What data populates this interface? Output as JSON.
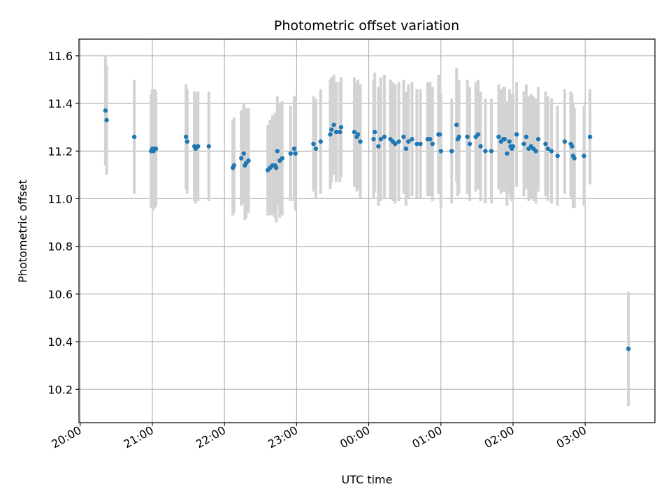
{
  "chart_data": {
    "type": "scatter",
    "title": "Photometric offset variation",
    "xlabel": "UTC time",
    "ylabel": "Photometric offset",
    "xlim": [
      "2000-01-01T19:59",
      "2000-01-02T03:58"
    ],
    "ylim": [
      10.06,
      11.67
    ],
    "x_tick_labels": [
      "20:00",
      "21:00",
      "22:00",
      "23:00",
      "00:00",
      "01:00",
      "02:00",
      "03:00"
    ],
    "x_ticks": [
      "2000-01-01T20:00",
      "2000-01-01T21:00",
      "2000-01-01T22:00",
      "2000-01-01T23:00",
      "2000-01-02T00:00",
      "2000-01-02T01:00",
      "2000-01-02T02:00",
      "2000-01-02T03:00"
    ],
    "y_ticks": [
      10.2,
      10.4,
      10.6,
      10.8,
      11.0,
      11.2,
      11.4,
      11.6
    ],
    "y_tick_labels": [
      "10.2",
      "10.4",
      "10.6",
      "10.8",
      "11.0",
      "11.2",
      "11.4",
      "11.6"
    ],
    "grid": true,
    "colors": {
      "points": "#1f77b4",
      "error_bars": "#d3d3d3",
      "grid": "#b0b0b0"
    },
    "series": [
      {
        "x": [
          "20:21",
          "20:22",
          "20:45",
          "20:59",
          "21:00",
          "21:01",
          "21:02",
          "21:03",
          "21:28",
          "21:29",
          "21:35",
          "21:36",
          "21:38",
          "21:47",
          "22:07",
          "22:08",
          "22:14",
          "22:16",
          "22:17",
          "22:18",
          "22:20",
          "22:36",
          "22:38",
          "22:40",
          "22:42",
          "22:43",
          "22:44",
          "22:46",
          "22:48",
          "22:55",
          "22:58",
          "22:59",
          "23:14",
          "23:16",
          "23:20",
          "23:28",
          "23:29",
          "23:31",
          "23:33",
          "23:36",
          "23:37",
          "23:48",
          "23:50",
          "23:51",
          "23:53",
          "00:04",
          "00:05",
          "00:08",
          "00:10",
          "00:13",
          "00:18",
          "00:20",
          "00:22",
          "00:25",
          "00:29",
          "00:31",
          "00:33",
          "00:36",
          "00:40",
          "00:43",
          "00:49",
          "00:51",
          "00:53",
          "00:58",
          "00:59",
          "01:00",
          "01:09",
          "01:13",
          "01:14",
          "01:15",
          "01:22",
          "01:24",
          "01:29",
          "01:31",
          "01:33",
          "01:37",
          "01:42",
          "01:48",
          "01:50",
          "01:52",
          "01:53",
          "01:55",
          "01:57",
          "01:58",
          "01:59",
          "02:00",
          "02:03",
          "02:09",
          "02:11",
          "02:13",
          "02:15",
          "02:17",
          "02:19",
          "02:21",
          "02:27",
          "02:29",
          "02:32",
          "02:37",
          "02:43",
          "02:48",
          "02:49",
          "02:50",
          "02:51",
          "02:59",
          "03:04",
          "03:36"
        ],
        "y": [
          11.37,
          11.33,
          11.26,
          11.2,
          11.21,
          11.2,
          11.21,
          11.21,
          11.26,
          11.24,
          11.22,
          11.21,
          11.22,
          11.22,
          11.13,
          11.14,
          11.17,
          11.19,
          11.14,
          11.15,
          11.16,
          11.12,
          11.13,
          11.14,
          11.14,
          11.13,
          11.2,
          11.16,
          11.17,
          11.19,
          11.21,
          11.19,
          11.23,
          11.21,
          11.24,
          11.27,
          11.29,
          11.31,
          11.28,
          11.28,
          11.3,
          11.28,
          11.26,
          11.27,
          11.24,
          11.25,
          11.28,
          11.22,
          11.25,
          11.26,
          11.25,
          11.24,
          11.23,
          11.24,
          11.26,
          11.21,
          11.24,
          11.25,
          11.23,
          11.23,
          11.25,
          11.25,
          11.23,
          11.27,
          11.27,
          11.2,
          11.2,
          11.31,
          11.25,
          11.26,
          11.26,
          11.23,
          11.26,
          11.27,
          11.22,
          11.2,
          11.2,
          11.26,
          11.24,
          11.25,
          11.25,
          11.19,
          11.24,
          11.22,
          11.21,
          11.22,
          11.27,
          11.23,
          11.26,
          11.21,
          11.22,
          11.21,
          11.2,
          11.25,
          11.23,
          11.21,
          11.2,
          11.18,
          11.24,
          11.23,
          11.22,
          11.18,
          11.17,
          11.18,
          11.26,
          10.37
        ],
        "err": [
          0.23,
          0.23,
          0.24,
          0.24,
          0.25,
          0.25,
          0.25,
          0.24,
          0.22,
          0.22,
          0.23,
          0.23,
          0.23,
          0.23,
          0.2,
          0.2,
          0.2,
          0.21,
          0.23,
          0.23,
          0.22,
          0.19,
          0.2,
          0.21,
          0.22,
          0.23,
          0.23,
          0.24,
          0.24,
          0.2,
          0.22,
          0.24,
          0.2,
          0.21,
          0.22,
          0.23,
          0.22,
          0.21,
          0.21,
          0.21,
          0.21,
          0.23,
          0.23,
          0.23,
          0.24,
          0.25,
          0.25,
          0.25,
          0.26,
          0.26,
          0.25,
          0.25,
          0.25,
          0.25,
          0.24,
          0.24,
          0.24,
          0.24,
          0.23,
          0.23,
          0.24,
          0.24,
          0.24,
          0.25,
          0.25,
          0.24,
          0.22,
          0.24,
          0.24,
          0.24,
          0.24,
          0.24,
          0.23,
          0.23,
          0.23,
          0.22,
          0.22,
          0.22,
          0.22,
          0.22,
          0.22,
          0.22,
          0.22,
          0.22,
          0.22,
          0.22,
          0.22,
          0.22,
          0.22,
          0.22,
          0.22,
          0.22,
          0.22,
          0.22,
          0.22,
          0.22,
          0.22,
          0.21,
          0.22,
          0.22,
          0.22,
          0.22,
          0.21,
          0.21,
          0.2,
          0.24
        ]
      }
    ]
  }
}
